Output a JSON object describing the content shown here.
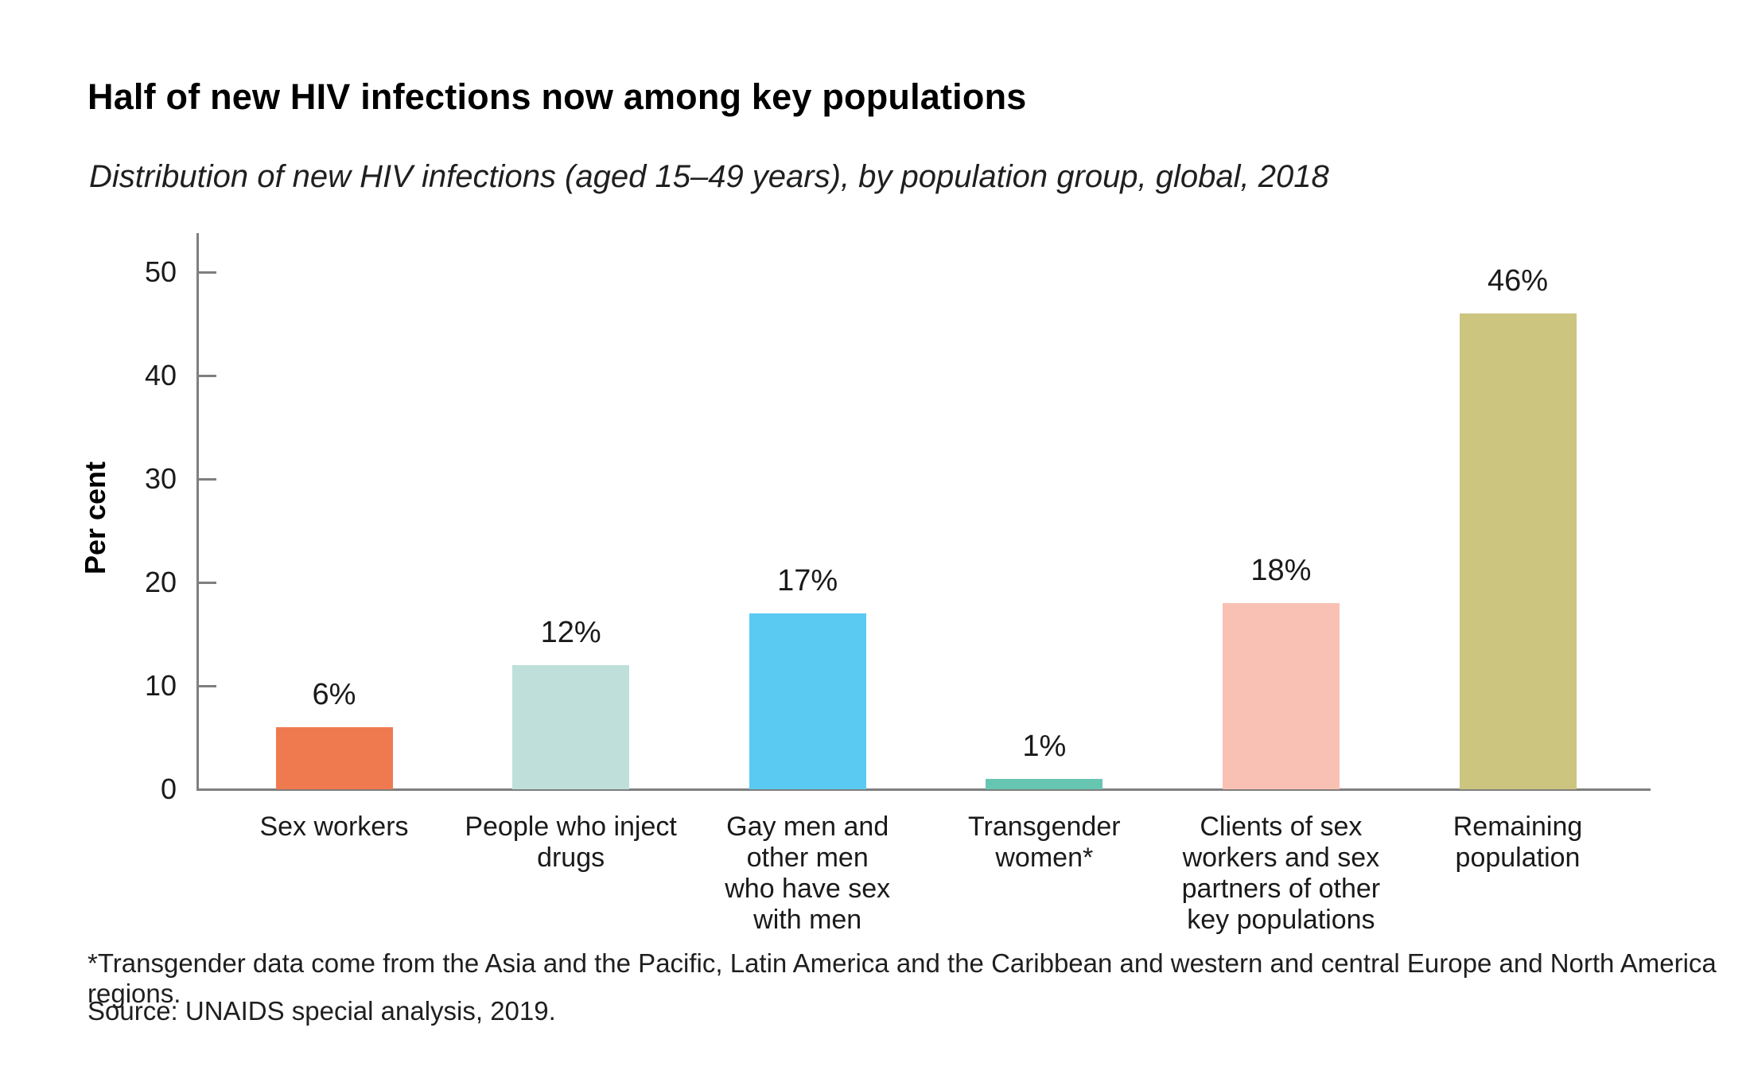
{
  "header": {
    "title": "Half of new HIV infections now among key populations",
    "subtitle": "Distribution of new HIV infections (aged 15–49 years), by population group, global, 2018"
  },
  "footer": {
    "footnote": "*Transgender data come from the Asia and the Pacific, Latin America and the Caribbean and western and central Europe and North America regions.",
    "source": "Source: UNAIDS special analysis, 2019."
  },
  "colors": {
    "axis": "#7f7f7f",
    "text": "#1a1a1a"
  },
  "chart_data": {
    "type": "bar",
    "title": "Half of new HIV infections now among key populations",
    "subtitle": "Distribution of new HIV infections (aged 15–49 years), by population group, global, 2018",
    "xlabel": "",
    "ylabel": "Per cent",
    "categories": [
      "Sex workers",
      "People who inject\ndrugs",
      "Gay men and\nother men\nwho have sex\nwith men",
      "Transgender\nwomen*",
      "Clients of sex\nworkers and sex\npartners of other\nkey populations",
      "Remaining\npopulation"
    ],
    "values": [
      6,
      12,
      17,
      1,
      18,
      46
    ],
    "value_labels": [
      "6%",
      "12%",
      "17%",
      "1%",
      "18%",
      "46%"
    ],
    "bar_colors": [
      "#ef7a50",
      "#bfe0da",
      "#5acaf2",
      "#66c6b1",
      "#f9c1b4",
      "#ccc57f"
    ],
    "yticks": [
      0,
      10,
      20,
      30,
      40,
      50
    ],
    "ylim": [
      0,
      53.8
    ],
    "grid": false,
    "legend": "none"
  }
}
